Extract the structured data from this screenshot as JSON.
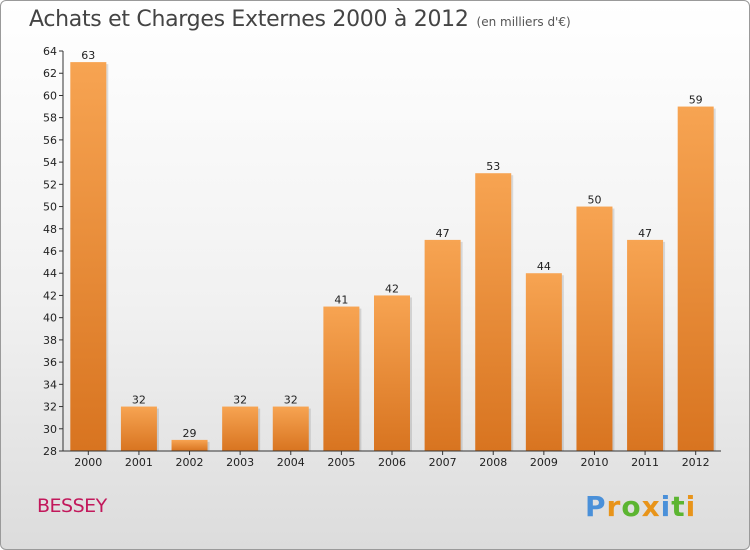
{
  "header": {
    "title": "Achats et Charges Externes 2000 à 2012",
    "subtitle": "(en milliers d'€)"
  },
  "footer": {
    "commune": "BESSEY",
    "logo": "Proxiti"
  },
  "colors": {
    "bar_top": "#f7a452",
    "bar_bottom": "#d87420",
    "commune_text": "#c2185b",
    "logo_letters": [
      "#4a90d9",
      "#e8941a",
      "#5cb531",
      "#e8941a",
      "#4a90d9",
      "#5cb531",
      "#e8941a"
    ]
  },
  "chart_data": {
    "type": "bar",
    "title": "Achats et Charges Externes 2000 à 2012",
    "subtitle": "(en milliers d'€)",
    "categories": [
      "2000",
      "2001",
      "2002",
      "2003",
      "2004",
      "2005",
      "2006",
      "2007",
      "2008",
      "2009",
      "2010",
      "2011",
      "2012"
    ],
    "values": [
      63,
      32,
      29,
      32,
      32,
      41,
      42,
      47,
      53,
      44,
      50,
      47,
      59
    ],
    "ylim": [
      28,
      64
    ],
    "yticks": [
      28,
      30,
      32,
      34,
      36,
      38,
      40,
      42,
      44,
      46,
      48,
      50,
      52,
      54,
      56,
      58,
      60,
      62,
      64
    ],
    "xlabel": "",
    "ylabel": "",
    "grid": false,
    "data_labels": true
  }
}
